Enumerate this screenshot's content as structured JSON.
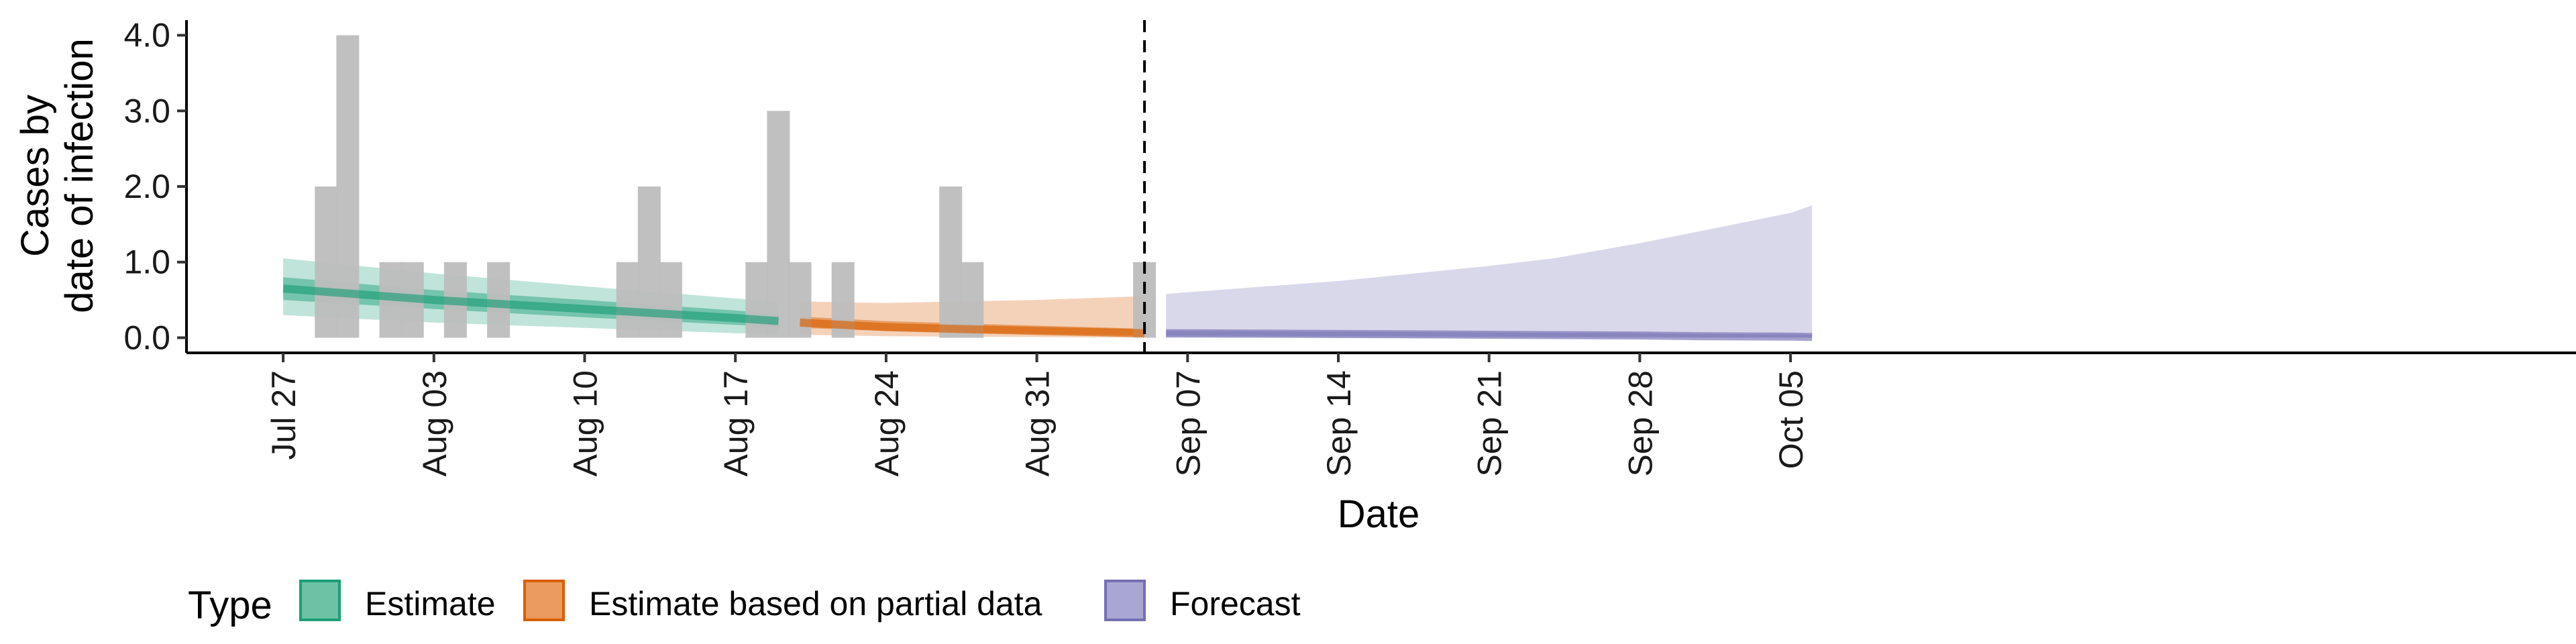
{
  "chart_data": {
    "type": "bar+area",
    "xlabel": "Date",
    "ylabel_line1": "Cases by",
    "ylabel_line2": "date of infection",
    "y_ticks": [
      "0.0",
      "1.0",
      "2.0",
      "3.0",
      "4.0"
    ],
    "ylim": [
      -0.2,
      4.2
    ],
    "x_start": "2024-07-26",
    "x_ticks": [
      {
        "date": "2024-07-27",
        "label": "Jul 27"
      },
      {
        "date": "2024-08-03",
        "label": "Aug 03"
      },
      {
        "date": "2024-08-10",
        "label": "Aug 10"
      },
      {
        "date": "2024-08-17",
        "label": "Aug 17"
      },
      {
        "date": "2024-08-24",
        "label": "Aug 24"
      },
      {
        "date": "2024-08-31",
        "label": "Aug 31"
      },
      {
        "date": "2024-09-07",
        "label": "Sep 07"
      },
      {
        "date": "2024-09-14",
        "label": "Sep 14"
      },
      {
        "date": "2024-09-21",
        "label": "Sep 21"
      },
      {
        "date": "2024-09-28",
        "label": "Sep 28"
      },
      {
        "date": "2024-10-05",
        "label": "Oct 05"
      }
    ],
    "vline_date": "2024-09-05",
    "reported_cases": [
      {
        "date": "2024-07-29",
        "value": 2
      },
      {
        "date": "2024-07-30",
        "value": 4
      },
      {
        "date": "2024-08-01",
        "value": 1
      },
      {
        "date": "2024-08-02",
        "value": 1
      },
      {
        "date": "2024-08-04",
        "value": 1
      },
      {
        "date": "2024-08-06",
        "value": 1
      },
      {
        "date": "2024-08-12",
        "value": 1
      },
      {
        "date": "2024-08-13",
        "value": 2
      },
      {
        "date": "2024-08-14",
        "value": 1
      },
      {
        "date": "2024-08-18",
        "value": 1
      },
      {
        "date": "2024-08-19",
        "value": 3
      },
      {
        "date": "2024-08-20",
        "value": 1
      },
      {
        "date": "2024-08-22",
        "value": 1
      },
      {
        "date": "2024-08-27",
        "value": 2
      },
      {
        "date": "2024-08-28",
        "value": 1
      },
      {
        "date": "2024-09-05",
        "value": 1
      }
    ],
    "series": [
      {
        "name": "Estimate",
        "color": "#1b9e77",
        "x": [
          "2024-07-27",
          "2024-08-03",
          "2024-08-10",
          "2024-08-17",
          "2024-08-19"
        ],
        "median": [
          0.65,
          0.5,
          0.38,
          0.26,
          0.22
        ],
        "lower50": [
          0.5,
          0.38,
          0.27,
          0.17,
          0.14
        ],
        "upper50": [
          0.8,
          0.63,
          0.5,
          0.36,
          0.32
        ],
        "lower90": [
          0.3,
          0.2,
          0.13,
          0.06,
          0.05
        ],
        "upper90": [
          1.05,
          0.85,
          0.68,
          0.52,
          0.48
        ]
      },
      {
        "name": "Estimate based on partial data",
        "color": "#d95f02",
        "x": [
          "2024-08-20",
          "2024-08-24",
          "2024-08-31",
          "2024-09-05"
        ],
        "median": [
          0.2,
          0.14,
          0.09,
          0.06
        ],
        "lower50": [
          0.13,
          0.09,
          0.05,
          0.03
        ],
        "upper50": [
          0.28,
          0.22,
          0.16,
          0.12
        ],
        "lower90": [
          0.04,
          0.02,
          0.01,
          0.0
        ],
        "upper90": [
          0.48,
          0.46,
          0.5,
          0.55
        ]
      },
      {
        "name": "Forecast",
        "color": "#7570b3",
        "x": [
          "2024-09-06",
          "2024-09-14",
          "2024-09-21",
          "2024-09-24",
          "2024-09-28",
          "2024-10-01",
          "2024-10-05",
          "2024-10-06"
        ],
        "median": [
          0.06,
          0.05,
          0.04,
          0.035,
          0.03,
          0.02,
          0.015,
          0.01
        ],
        "lower50": [
          0.03,
          0.02,
          0.015,
          0.01,
          0.01,
          0.005,
          0.003,
          0.002
        ],
        "upper50": [
          0.09,
          0.08,
          0.07,
          0.065,
          0.06,
          0.05,
          0.045,
          0.04
        ],
        "lower90": [
          0.0,
          0.0,
          0.0,
          0.0,
          0.0,
          0.0,
          0.0,
          0.0
        ],
        "upper90": [
          0.58,
          0.75,
          0.95,
          1.05,
          1.25,
          1.42,
          1.65,
          1.75
        ]
      }
    ],
    "bar_color": "#bdbdbd",
    "legend": {
      "title": "Type",
      "placement": "bottom",
      "entries": [
        {
          "label": "Estimate",
          "fill": "#6dc2a5",
          "stroke": "#1b9e77"
        },
        {
          "label": "Estimate based on partial data",
          "fill": "#eb9a60",
          "stroke": "#d95f02"
        },
        {
          "label": "Forecast",
          "fill": "#a9a6d4",
          "stroke": "#7570b3"
        }
      ]
    }
  }
}
